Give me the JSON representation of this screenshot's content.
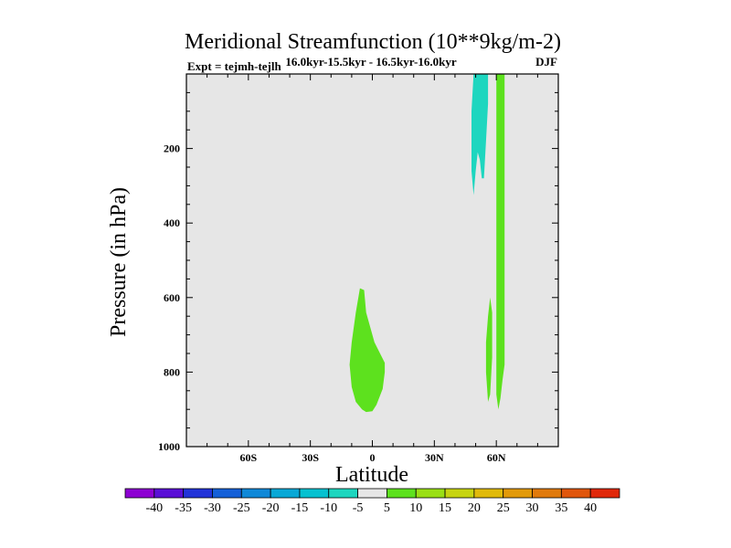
{
  "chart_data": {
    "type": "heatmap",
    "title": "Meridional Streamfunction (10**9kg/m-2)",
    "subtitle_left": "Expt = tejmh-tejlh",
    "subtitle_center": "16.0kyr-15.5kyr - 16.5kyr-16.0kyr",
    "subtitle_right": "DJF",
    "xlabel": "Latitude",
    "ylabel": "Pressure (in hPa)",
    "xlim": [
      -90,
      90
    ],
    "ylim": [
      1000,
      0
    ],
    "x_ticks": [
      {
        "value": -60,
        "label": "60S"
      },
      {
        "value": -30,
        "label": "30S"
      },
      {
        "value": 0,
        "label": "0"
      },
      {
        "value": 30,
        "label": "30N"
      },
      {
        "value": 60,
        "label": "60N"
      }
    ],
    "y_ticks": [
      {
        "value": 200,
        "label": "200"
      },
      {
        "value": 400,
        "label": "400"
      },
      {
        "value": 600,
        "label": "600"
      },
      {
        "value": 800,
        "label": "800"
      },
      {
        "value": 1000,
        "label": "1000"
      }
    ],
    "background_color": "#e6e6e6",
    "colorbar": {
      "levels": [
        "-40",
        "-35",
        "-30",
        "-25",
        "-20",
        "-15",
        "-10",
        "-5",
        "5",
        "10",
        "15",
        "20",
        "25",
        "30",
        "35",
        "40"
      ],
      "colors": [
        "#8d00d2",
        "#5a0fd6",
        "#2233d8",
        "#1560d8",
        "#0f88d8",
        "#08a8d6",
        "#06c1d0",
        "#1ed6bf",
        "#e6e6e6",
        "#5de11e",
        "#9adf14",
        "#c7d410",
        "#e0ba0a",
        "#e29a0a",
        "#e07a0c",
        "#e0560c",
        "#e0280a"
      ]
    },
    "regions": [
      {
        "name": "equatorial-positive",
        "range": "5 to 10",
        "color": "#5de11e",
        "outline": [
          [
            -6,
            575
          ],
          [
            -4,
            580
          ],
          [
            -3,
            640
          ],
          [
            1,
            720
          ],
          [
            6,
            775
          ],
          [
            6,
            800
          ],
          [
            5,
            845
          ],
          [
            2,
            888
          ],
          [
            0,
            905
          ],
          [
            -3,
            907
          ],
          [
            -5,
            900
          ],
          [
            -8,
            880
          ],
          [
            -10,
            840
          ],
          [
            -11,
            780
          ],
          [
            -10,
            720
          ],
          [
            -8,
            640
          ]
        ]
      },
      {
        "name": "midlatitude-negative",
        "range": "-10 to -5",
        "color": "#1ed6bf",
        "outline": [
          [
            49,
            0
          ],
          [
            56,
            0
          ],
          [
            56,
            80
          ],
          [
            55,
            180
          ],
          [
            54,
            280
          ],
          [
            53,
            280
          ],
          [
            52,
            230
          ],
          [
            51,
            210
          ],
          [
            50,
            260
          ],
          [
            49,
            325
          ],
          [
            48,
            260
          ],
          [
            48,
            100
          ]
        ]
      },
      {
        "name": "midlatitude-positive",
        "range": "5 to 10",
        "color": "#5de11e",
        "outline": [
          [
            57,
            600
          ],
          [
            58,
            640
          ],
          [
            58,
            760
          ],
          [
            57,
            860
          ],
          [
            56,
            880
          ],
          [
            55,
            800
          ],
          [
            55,
            720
          ],
          [
            56,
            650
          ]
        ]
      },
      {
        "name": "polar-positive",
        "range": "5 to 10",
        "color": "#5de11e",
        "outline": [
          [
            60,
            0
          ],
          [
            64,
            0
          ],
          [
            64,
            100
          ],
          [
            64,
            780
          ],
          [
            63,
            820
          ],
          [
            62,
            870
          ],
          [
            61,
            900
          ],
          [
            60,
            860
          ],
          [
            60,
            700
          ],
          [
            60,
            400
          ],
          [
            60,
            100
          ]
        ]
      },
      {
        "name": "gap-line",
        "range": "0",
        "color": "#e6e6e6",
        "outline": [
          [
            57.8,
            0
          ],
          [
            58.4,
            0
          ],
          [
            58.4,
            20
          ],
          [
            57.8,
            20
          ]
        ]
      }
    ]
  }
}
